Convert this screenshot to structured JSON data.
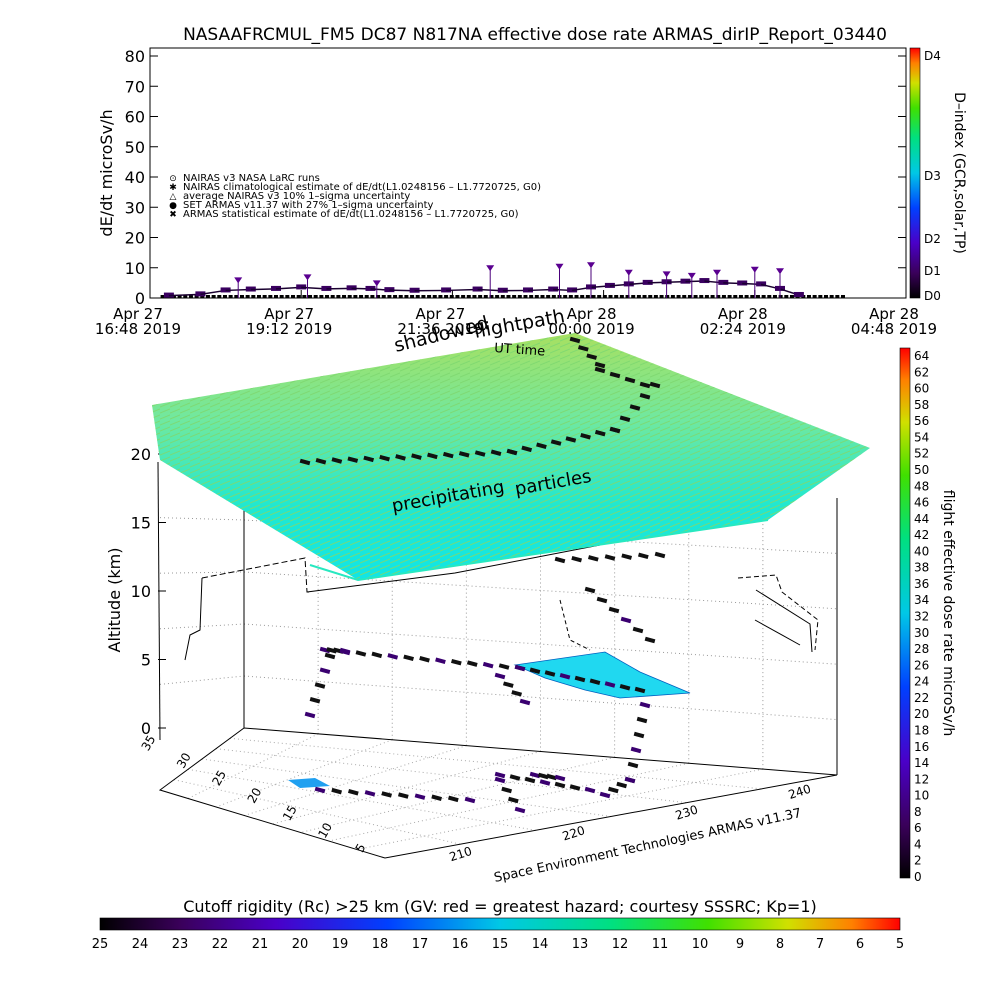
{
  "figure": {
    "title": "NASAAFRCMUL_FM5 DC87 N817NA effective dose rate ARMAS_dirIP_Report_03440",
    "footer": "Space Environment Technologies ARMAS v11.37"
  },
  "chart_data": [
    {
      "type": "scatter",
      "name": "dose-rate-timeseries",
      "title": "NASAAFRCMUL_FM5 DC87 N817NA effective dose rate ARMAS_dirIP_Report_03440",
      "xlabel": "UT time",
      "ylabel": "dE/dt microSv/h",
      "ylim": [
        0,
        80
      ],
      "yticks": [
        "0",
        "10",
        "20",
        "30",
        "40",
        "50",
        "60",
        "70",
        "80"
      ],
      "xticks": [
        {
          "top": "Apr 27",
          "bottom": "16:48 2019"
        },
        {
          "top": "Apr 27",
          "bottom": "19:12 2019"
        },
        {
          "top": "Apr 27",
          "bottom": "21:36 2019"
        },
        {
          "top": "Apr 28",
          "bottom": "00:00 2019"
        },
        {
          "top": "Apr 28",
          "bottom": "02:24 2019"
        },
        {
          "top": "Apr 28",
          "bottom": "04:48 2019"
        }
      ],
      "xrange_hours": [
        0,
        12
      ],
      "legend": [
        {
          "symbol": "⊙",
          "label": "NAIRAS v3 NASA LaRC runs"
        },
        {
          "symbol": "✱",
          "label": "NAIRAS climatological estimate of dE/dt(L1.0248156 – L1.7720725, G0)"
        },
        {
          "symbol": "△",
          "label": "average NAIRAS v3 10% 1–sigma uncertainty"
        },
        {
          "symbol": "●",
          "label": "SET ARMAS v11.37 with 27% 1–sigma uncertainty"
        },
        {
          "symbol": "✖",
          "label": "ARMAS statistical estimate of dE/dt(L1.0248156 – L1.7720725, G0)"
        }
      ],
      "legend_placement": "left",
      "dindex_colorbar": {
        "label": "D–index (GCR,solar,TP)",
        "ticks": [
          "D0",
          "D1",
          "D2",
          "D3",
          "D4"
        ]
      },
      "series": [
        {
          "name": "ARMAS",
          "points": [
            [
              0.3,
              0.8
            ],
            [
              0.8,
              1.2
            ],
            [
              1.2,
              2.5
            ],
            [
              1.6,
              2.8
            ],
            [
              2.0,
              3.0
            ],
            [
              2.4,
              3.5
            ],
            [
              2.8,
              3.0
            ],
            [
              3.2,
              3.2
            ],
            [
              3.5,
              3.0
            ],
            [
              3.8,
              2.6
            ],
            [
              4.2,
              2.4
            ],
            [
              4.7,
              2.5
            ],
            [
              5.2,
              2.8
            ],
            [
              5.6,
              2.4
            ],
            [
              6.0,
              2.5
            ],
            [
              6.4,
              2.8
            ],
            [
              6.7,
              2.5
            ],
            [
              7.0,
              3.5
            ],
            [
              7.3,
              4.0
            ],
            [
              7.6,
              4.5
            ],
            [
              7.9,
              5.0
            ],
            [
              8.2,
              5.2
            ],
            [
              8.5,
              5.4
            ],
            [
              8.8,
              5.6
            ],
            [
              9.1,
              5.0
            ],
            [
              9.4,
              4.8
            ],
            [
              9.7,
              4.5
            ],
            [
              10.0,
              3.0
            ],
            [
              10.3,
              1.0
            ]
          ]
        },
        {
          "name": "NAIRAS",
          "points": [
            [
              1.4,
              5.5
            ],
            [
              2.5,
              6.5
            ],
            [
              3.6,
              4.5
            ],
            [
              5.4,
              9.5
            ],
            [
              6.5,
              10.0
            ],
            [
              7.0,
              10.5
            ],
            [
              7.6,
              8.0
            ],
            [
              8.2,
              7.5
            ],
            [
              8.6,
              7.0
            ],
            [
              9.0,
              8.0
            ],
            [
              9.6,
              9.0
            ],
            [
              10.0,
              8.5
            ]
          ]
        }
      ]
    },
    {
      "type": "scatter",
      "name": "flight-path-3d",
      "zlabel": "Altitude (km)",
      "zticks": [
        "0",
        "5",
        "10",
        "15",
        "20"
      ],
      "zlim": [
        0,
        20
      ],
      "lat_ticks": [
        "5",
        "10",
        "15",
        "20",
        "25",
        "30",
        "35"
      ],
      "lon_ticks": [
        "210",
        "220",
        "230",
        "240"
      ],
      "annotations": [
        "shadowed",
        "flightpath",
        "precipitating",
        "particles"
      ],
      "dose_colorbar": {
        "label": "flight effective dose rate microSv/h",
        "ticks": [
          "0",
          "2",
          "4",
          "6",
          "8",
          "10",
          "12",
          "14",
          "16",
          "18",
          "20",
          "22",
          "24",
          "26",
          "28",
          "30",
          "32",
          "34",
          "36",
          "38",
          "40",
          "42",
          "44",
          "46",
          "48",
          "50",
          "52",
          "54",
          "56",
          "58",
          "60",
          "62",
          "64"
        ]
      }
    },
    {
      "type": "heatmap",
      "name": "cutoff-rigidity-colorbar",
      "title": "Cutoff rigidity (Rc) >25 km (GV: red = greatest hazard; courtesy SSSRC; Kp=1)",
      "ticks": [
        "25",
        "24",
        "23",
        "22",
        "21",
        "20",
        "19",
        "18",
        "17",
        "16",
        "15",
        "14",
        "13",
        "12",
        "11",
        "10",
        "9",
        "8",
        "7",
        "6",
        "5"
      ]
    }
  ]
}
